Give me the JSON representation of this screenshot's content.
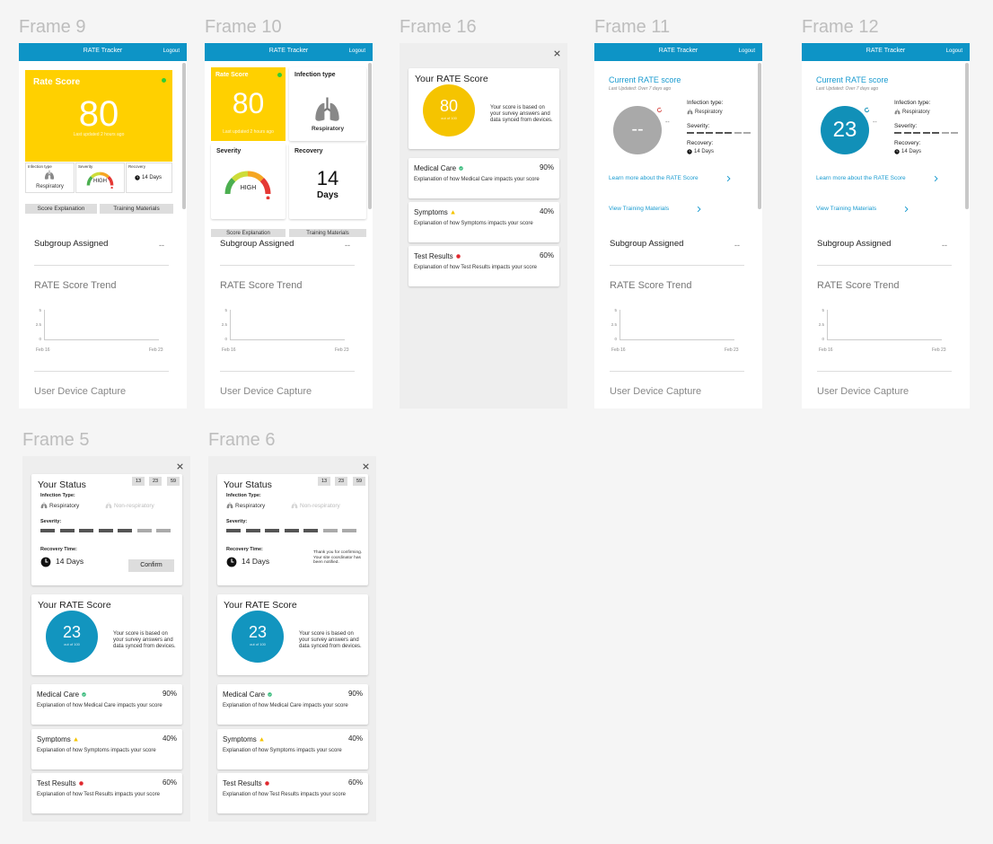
{
  "frames": [
    {
      "label": "Frame 9",
      "header": {
        "title": "RATE Tracker",
        "action": "Logout"
      },
      "score": {
        "title": "Rate Score",
        "value": "80",
        "updated": "Last updated 2 hours ago"
      },
      "infection": {
        "label": "Infection type",
        "value": "Respiratory"
      },
      "severity": {
        "label": "Severity",
        "value": "HIGH"
      },
      "recovery": {
        "label": "Recovery",
        "value": "14 Days"
      },
      "buttons": [
        "Score Explanation",
        "Training Materials"
      ],
      "subgroup": {
        "label": "Subgroup Assigned",
        "value": "--"
      },
      "trend": {
        "title": "RATE Score Trend",
        "yticks": [
          "5",
          "2.5",
          "0"
        ],
        "xticks": [
          "Feb 16",
          "Feb 23"
        ]
      },
      "footer": "User Device Capture"
    },
    {
      "label": "Frame 10",
      "header": {
        "title": "RATE Tracker",
        "action": "Logout"
      },
      "score": {
        "title": "Rate Score",
        "value": "80",
        "updated": "Last updated 2 hours ago"
      },
      "infection": {
        "label": "Infection type",
        "value": "Respiratory"
      },
      "severity": {
        "label": "Severity",
        "value": "HIGH"
      },
      "recovery": {
        "label": "Recovery",
        "value": "14",
        "unit": "Days"
      },
      "buttons": [
        "Score Explanation",
        "Training Materials"
      ],
      "subgroup": {
        "label": "Subgroup Assigned",
        "value": "--"
      },
      "trend": {
        "title": "RATE Score Trend",
        "yticks": [
          "5",
          "2.5",
          "0"
        ],
        "xticks": [
          "Feb 16",
          "Feb 23"
        ]
      },
      "footer": "User Device Capture"
    },
    {
      "label": "Frame 16",
      "score": {
        "title": "Your RATE Score",
        "value": "80",
        "scale": "out of 100",
        "description": "Your score is based on your survey answers and data synced from devices."
      },
      "factors": [
        {
          "name": "Medical Care",
          "percent": "90%",
          "description": "Explanation of how Medical Care impacts your score"
        },
        {
          "name": "Symptoms",
          "percent": "40%",
          "description": "Explanation of how Symptoms impacts your score"
        },
        {
          "name": "Test Results",
          "percent": "60%",
          "description": "Explanation of how Test Results impacts your score"
        }
      ]
    },
    {
      "label": "Frame 11",
      "header": {
        "title": "RATE Tracker",
        "action": "Logout"
      },
      "current": {
        "title": "Current RATE score",
        "updated": "Last Updated: Over 7 days ago",
        "value": "--",
        "delta": "--"
      },
      "infection": {
        "label": "Infection type:",
        "value": "Respiratory"
      },
      "severity": {
        "label": "Severity:"
      },
      "recovery": {
        "label": "Recovery:",
        "value": "14 Days"
      },
      "links": [
        "Learn more about the RATE Score",
        "View Training Materials"
      ],
      "subgroup": {
        "label": "Subgroup Assigned",
        "value": "--"
      },
      "trend": {
        "title": "RATE Score Trend",
        "yticks": [
          "5",
          "2.5",
          "0"
        ],
        "xticks": [
          "Feb 16",
          "Feb 23"
        ]
      },
      "footer": "User Device Capture"
    },
    {
      "label": "Frame 12",
      "header": {
        "title": "RATE Tracker",
        "action": "Logout"
      },
      "current": {
        "title": "Current RATE score",
        "updated": "Last Updated: Over 7 days ago",
        "value": "23",
        "delta": "--"
      },
      "infection": {
        "label": "Infection type:",
        "value": "Respiratory"
      },
      "severity": {
        "label": "Severity:"
      },
      "recovery": {
        "label": "Recovery:",
        "value": "14 Days"
      },
      "links": [
        "Learn more about the RATE Score",
        "View Training Materials"
      ],
      "subgroup": {
        "label": "Subgroup Assigned",
        "value": "--"
      },
      "trend": {
        "title": "RATE Score Trend",
        "yticks": [
          "5",
          "2.5",
          "0"
        ],
        "xticks": [
          "Feb 16",
          "Feb 23"
        ]
      },
      "footer": "User Device Capture"
    },
    {
      "label": "Frame 5",
      "status": {
        "title": "Your Status",
        "timer": [
          "13",
          "23",
          "59"
        ],
        "infection": {
          "label": "Infection Type:",
          "options": [
            "Respiratory",
            "Non-respiratory"
          ]
        },
        "severity": {
          "label": "Severity:"
        },
        "recovery": {
          "label": "Recovery Time:",
          "value": "14 Days"
        },
        "confirm": "Confirm"
      },
      "score": {
        "title": "Your RATE Score",
        "value": "23",
        "scale": "out of 100",
        "description": "Your score is based on your survey answers and data synced from devices."
      },
      "factors": [
        {
          "name": "Medical Care",
          "percent": "90%",
          "description": "Explanation of how Medical Care impacts your score"
        },
        {
          "name": "Symptoms",
          "percent": "40%",
          "description": "Explanation of how Symptoms impacts your score"
        },
        {
          "name": "Test Results",
          "percent": "60%",
          "description": "Explanation of how Test Results impacts your score"
        }
      ]
    },
    {
      "label": "Frame 6",
      "status": {
        "title": "Your Status",
        "timer": [
          "13",
          "23",
          "59"
        ],
        "infection": {
          "label": "Infection Type:",
          "options": [
            "Respiratory",
            "Non-respiratory"
          ]
        },
        "severity": {
          "label": "Severity:"
        },
        "recovery": {
          "label": "Recovery Time:",
          "value": "14 Days"
        },
        "confirmation": "Thank you for confirming. Your site coordinator has been notified."
      },
      "score": {
        "title": "Your RATE Score",
        "value": "23",
        "scale": "out of 100",
        "description": "Your score is based on your survey answers and data synced from devices."
      },
      "factors": [
        {
          "name": "Medical Care",
          "percent": "90%",
          "description": "Explanation of how Medical Care impacts your score"
        },
        {
          "name": "Symptoms",
          "percent": "40%",
          "description": "Explanation of how Symptoms impacts your score"
        },
        {
          "name": "Test Results",
          "percent": "60%",
          "description": "Explanation of how Test Results impacts your score"
        }
      ]
    }
  ]
}
